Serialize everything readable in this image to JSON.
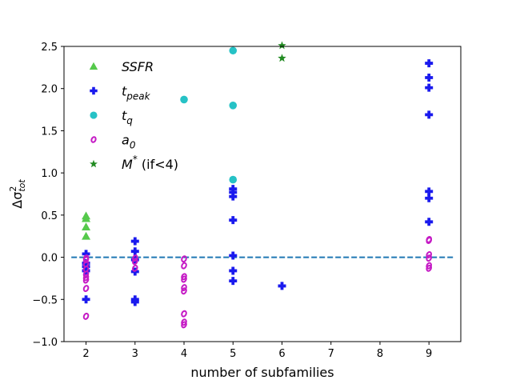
{
  "chart_data": {
    "type": "scatter",
    "title": "",
    "xlabel": "number of subfamilies",
    "ylabel_main": "Δσ",
    "ylabel_sup": "2",
    "ylabel_sub": "tot",
    "xlim": [
      1.55,
      9.65
    ],
    "ylim": [
      -1.0,
      2.5
    ],
    "xticks": [
      2,
      3,
      4,
      5,
      6,
      7,
      8,
      9
    ],
    "yticks": [
      -1.0,
      -0.5,
      0.0,
      0.5,
      1.0,
      1.5,
      2.0,
      2.5
    ],
    "ytick_labels": [
      "−1.0",
      "−0.5",
      "0.0",
      "0.5",
      "1.0",
      "1.5",
      "2.0",
      "2.5"
    ],
    "reference_line": {
      "y": 0.0,
      "color": "#1f77b4",
      "style": "dashed"
    },
    "legend_position": "top-left",
    "series": [
      {
        "name": "SSFR",
        "marker": "triangle",
        "color": "#55c94b",
        "points": [
          [
            2,
            0.49
          ],
          [
            2,
            0.46
          ],
          [
            2,
            0.36
          ],
          [
            2,
            0.25
          ]
        ]
      },
      {
        "name": "t_peak",
        "marker": "plus",
        "color": "#1a1aee",
        "points": [
          [
            2,
            0.04
          ],
          [
            2,
            -0.07
          ],
          [
            2,
            -0.11
          ],
          [
            2,
            -0.16
          ],
          [
            2,
            -0.5
          ],
          [
            3,
            0.19
          ],
          [
            3,
            0.07
          ],
          [
            3,
            -0.03
          ],
          [
            3,
            -0.17
          ],
          [
            3,
            -0.5
          ],
          [
            3,
            -0.53
          ],
          [
            5,
            0.81
          ],
          [
            5,
            0.77
          ],
          [
            5,
            0.72
          ],
          [
            5,
            0.44
          ],
          [
            5,
            0.02
          ],
          [
            5,
            -0.16
          ],
          [
            5,
            -0.28
          ],
          [
            6,
            -0.34
          ],
          [
            9,
            2.3
          ],
          [
            9,
            2.13
          ],
          [
            9,
            2.01
          ],
          [
            9,
            1.69
          ],
          [
            9,
            0.78
          ],
          [
            9,
            0.7
          ],
          [
            9,
            0.42
          ]
        ]
      },
      {
        "name": "t_q",
        "marker": "circle",
        "color": "#26c2c6",
        "points": [
          [
            4,
            1.87
          ],
          [
            5,
            2.45
          ],
          [
            5,
            1.8
          ],
          [
            5,
            0.92
          ]
        ]
      },
      {
        "name": "a_0",
        "marker": "ring",
        "color": "#c51bc5",
        "points": [
          [
            2,
            -0.01
          ],
          [
            2,
            -0.03
          ],
          [
            2,
            -0.08
          ],
          [
            2,
            -0.14
          ],
          [
            2,
            -0.2
          ],
          [
            2,
            -0.24
          ],
          [
            2,
            -0.27
          ],
          [
            2,
            -0.37
          ],
          [
            2,
            -0.7
          ],
          [
            3,
            -0.01
          ],
          [
            3,
            -0.05
          ],
          [
            3,
            -0.13
          ],
          [
            4,
            -0.02
          ],
          [
            4,
            -0.1
          ],
          [
            4,
            -0.23
          ],
          [
            4,
            -0.26
          ],
          [
            4,
            -0.36
          ],
          [
            4,
            -0.4
          ],
          [
            4,
            -0.67
          ],
          [
            4,
            -0.77
          ],
          [
            4,
            -0.8
          ],
          [
            9,
            0.21
          ],
          [
            9,
            0.2
          ],
          [
            9,
            0.03
          ],
          [
            9,
            -0.01
          ],
          [
            9,
            -0.1
          ],
          [
            9,
            -0.13
          ]
        ]
      },
      {
        "name": "M* (if<4)",
        "marker": "star",
        "color": "#228b22",
        "points": [
          [
            6,
            2.36
          ],
          [
            6,
            2.51
          ]
        ]
      }
    ],
    "legend": [
      {
        "main": "SSFR",
        "sub": "",
        "sup": "",
        "suffix": "",
        "italic": true
      },
      {
        "main": "t",
        "sub": "peak",
        "sup": "",
        "suffix": "",
        "italic": true
      },
      {
        "main": "t",
        "sub": "q",
        "sup": "",
        "suffix": "",
        "italic": true
      },
      {
        "main": "a",
        "sub": "0",
        "sup": "",
        "suffix": "",
        "italic": true
      },
      {
        "main": "M",
        "sub": "",
        "sup": "*",
        "suffix": " (if<4)",
        "italic": true
      }
    ]
  }
}
